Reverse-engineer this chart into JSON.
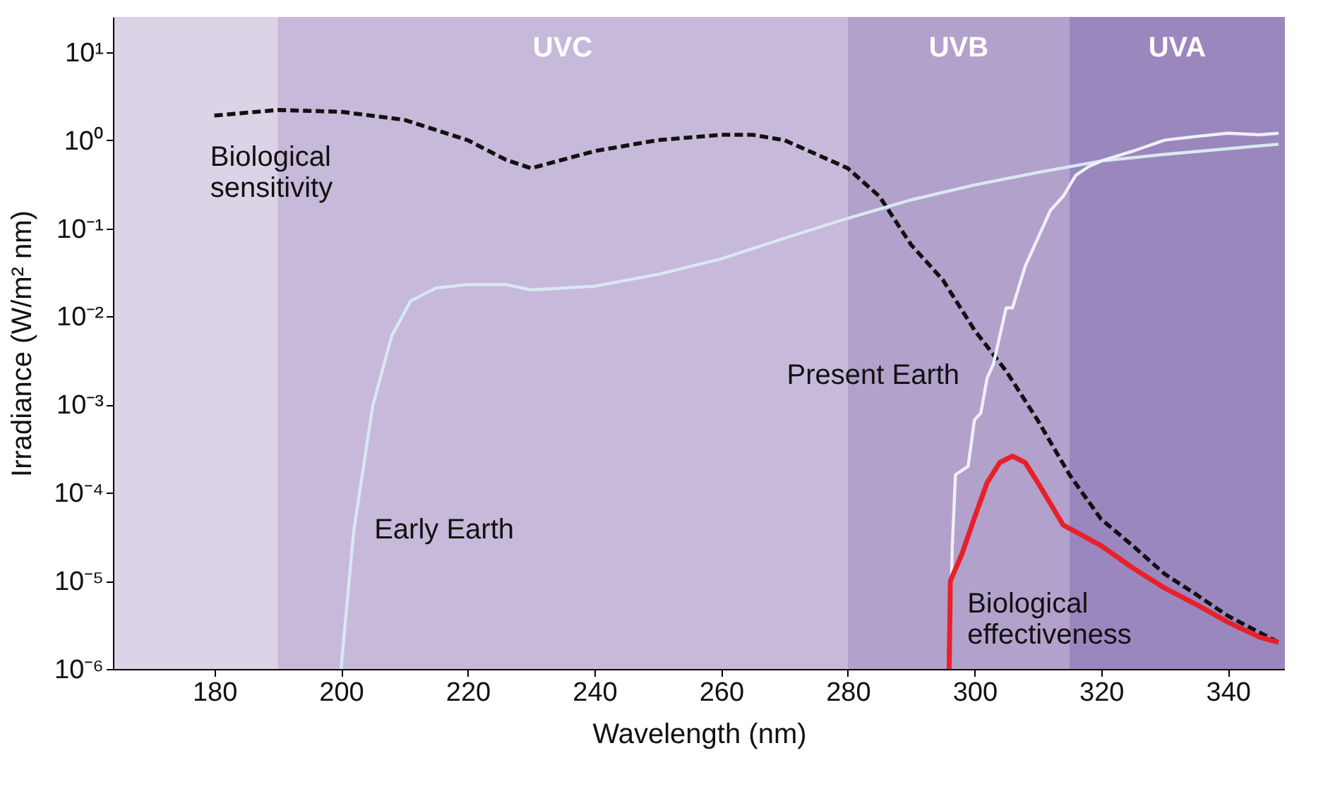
{
  "chart_data": {
    "type": "line",
    "xlabel": "Wavelength (nm)",
    "ylabel": "Irradiance (W/m² nm)",
    "log": "y",
    "grid": false,
    "xlim": [
      164,
      349
    ],
    "xticks": [
      180,
      200,
      220,
      240,
      260,
      280,
      300,
      320,
      340
    ],
    "ylim": [
      1e-06,
      25
    ],
    "yticks": [
      {
        "value": 10,
        "label": "10¹"
      },
      {
        "value": 1,
        "label": "10⁰"
      },
      {
        "value": 0.1,
        "label": "10⁻¹"
      },
      {
        "value": 0.01,
        "label": "10⁻²"
      },
      {
        "value": 0.001,
        "label": "10⁻³"
      },
      {
        "value": 0.0001,
        "label": "10⁻⁴"
      },
      {
        "value": 1e-05,
        "label": "10⁻⁵"
      },
      {
        "value": 1e-06,
        "label": "10⁻⁶"
      }
    ],
    "bands": [
      {
        "axis": "x",
        "from": 164,
        "to": 190,
        "label": null,
        "color": "#ddd3e6"
      },
      {
        "axis": "x",
        "from": 190,
        "to": 280,
        "label": "UVC",
        "color": "#c6b9da"
      },
      {
        "axis": "x",
        "from": 280,
        "to": 315,
        "label": "UVB",
        "color": "#b1a1cb"
      },
      {
        "axis": "x",
        "from": 315,
        "to": 349,
        "label": "UVA",
        "color": "#9a87be"
      }
    ],
    "series": [
      {
        "name": "Biological sensitivity",
        "color": "#111111",
        "line_style": "dashed",
        "x": [
          180,
          190,
          200,
          210,
          220,
          226,
          230,
          240,
          250,
          260,
          265,
          270,
          280,
          285,
          290,
          295,
          300,
          305,
          310,
          315,
          320,
          325,
          330,
          335,
          340,
          348
        ],
        "values": [
          1.9,
          2.2,
          2.1,
          1.7,
          1.0,
          0.6,
          0.48,
          0.75,
          1.0,
          1.15,
          1.15,
          1.0,
          0.48,
          0.23,
          0.065,
          0.026,
          0.007,
          0.0024,
          0.00066,
          0.00016,
          5e-05,
          2.5e-05,
          1.2e-05,
          7e-06,
          4e-06,
          2e-06
        ]
      },
      {
        "name": "Early Earth",
        "color": "#d8e8f2",
        "line_style": "solid",
        "x": [
          200,
          202,
          205,
          208,
          211,
          215,
          220,
          226,
          230,
          240,
          250,
          260,
          270,
          280,
          290,
          300,
          310,
          320,
          330,
          340,
          348
        ],
        "values": [
          1e-06,
          3.6e-05,
          0.00096,
          0.006,
          0.015,
          0.021,
          0.023,
          0.023,
          0.02,
          0.022,
          0.03,
          0.045,
          0.077,
          0.13,
          0.21,
          0.31,
          0.43,
          0.58,
          0.69,
          0.8,
          0.9
        ]
      },
      {
        "name": "Present Earth",
        "color": "#eef0f6",
        "line_style": "solid",
        "x": [
          296,
          296.5,
          297,
          299,
          300,
          301,
          302,
          303,
          304,
          305,
          306,
          308,
          310,
          312,
          314,
          316,
          318,
          320,
          325,
          330,
          335,
          340,
          345,
          348
        ],
        "values": [
          1e-06,
          2.5e-05,
          0.00016,
          0.0002,
          0.00067,
          0.0008,
          0.002,
          0.0029,
          0.006,
          0.0125,
          0.0125,
          0.037,
          0.077,
          0.16,
          0.23,
          0.4,
          0.5,
          0.58,
          0.75,
          1.0,
          1.1,
          1.2,
          1.15,
          1.2
        ]
      },
      {
        "name": "Biological effectiveness",
        "color": "#e8202a",
        "line_style": "solid",
        "x": [
          296,
          296.2,
          298,
          300,
          302,
          304,
          306,
          308,
          310,
          312,
          314,
          316,
          320,
          325,
          330,
          335,
          340,
          345,
          348
        ],
        "values": [
          1e-06,
          1e-05,
          2e-05,
          5.2e-05,
          0.00013,
          0.00022,
          0.00026,
          0.00022,
          0.00013,
          7.5e-05,
          4.3e-05,
          3.6e-05,
          2.5e-05,
          1.4e-05,
          8.3e-06,
          5.4e-06,
          3.4e-06,
          2.3e-06,
          2e-06
        ]
      }
    ]
  }
}
